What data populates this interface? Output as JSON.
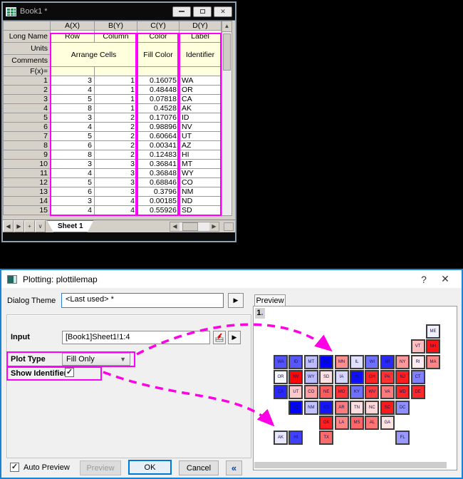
{
  "book_window": {
    "title": "Book1 *",
    "columns": [
      "A(X)",
      "B(Y)",
      "C(Y)",
      "D(Y)"
    ],
    "row_labels": {
      "long_name": "Long Name",
      "units": "Units",
      "comments": "Comments",
      "fx": "F(x)="
    },
    "long_name_values": [
      "Row",
      "Column",
      "Color",
      "Label"
    ],
    "span_labels": {
      "ab": "Arrange Cells",
      "c": "Fill Color",
      "d": "Identifier"
    },
    "data": [
      [
        3,
        1,
        "0.16075",
        "WA"
      ],
      [
        4,
        1,
        "0.48448",
        "OR"
      ],
      [
        5,
        1,
        "0.07818",
        "CA"
      ],
      [
        8,
        1,
        "0.4528",
        "AK"
      ],
      [
        3,
        2,
        "0.17076",
        "ID"
      ],
      [
        4,
        2,
        "0.98896",
        "NV"
      ],
      [
        5,
        2,
        "0.60664",
        "UT"
      ],
      [
        6,
        2,
        "0.00341",
        "AZ"
      ],
      [
        8,
        2,
        "0.12483",
        "HI"
      ],
      [
        3,
        3,
        "0.36841",
        "MT"
      ],
      [
        4,
        3,
        "0.36848",
        "WY"
      ],
      [
        5,
        3,
        "0.68846",
        "CO"
      ],
      [
        6,
        3,
        "0.3796",
        "NM"
      ],
      [
        3,
        4,
        "0.00185",
        "ND"
      ],
      [
        4,
        4,
        "0.55926",
        "SD"
      ]
    ],
    "sheet_tab": "Sheet 1"
  },
  "dialog": {
    "title": "Plotting: plottilemap",
    "help_label": "?",
    "close_label": "✕",
    "dialog_theme": {
      "label": "Dialog Theme",
      "value": "<Last used> *"
    },
    "input": {
      "label": "Input",
      "value": "[Book1]Sheet1!1:4"
    },
    "plot_type": {
      "label": "Plot Type",
      "value": "Fill Only"
    },
    "show_identifier": {
      "label": "Show Identifier",
      "checked": "✓"
    },
    "auto_preview": {
      "label": "Auto Preview",
      "checked": "✓"
    },
    "buttons": {
      "preview": "Preview",
      "ok": "OK",
      "cancel": "Cancel",
      "collapse": "«"
    },
    "preview_tab": "Preview",
    "layer_badge": "1",
    "highlight_color": "#FF00FF"
  },
  "tile_map": {
    "tiles": [
      {
        "id": "ME",
        "r": 1,
        "c": 11,
        "color": "#F0F0FF"
      },
      {
        "id": "VT",
        "r": 2,
        "c": 10,
        "color": "#FFBDBD"
      },
      {
        "id": "NH",
        "r": 2,
        "c": 11,
        "color": "#FF1414"
      },
      {
        "id": "WA",
        "r": 3,
        "c": 1,
        "color": "#5252FF"
      },
      {
        "id": "ID",
        "r": 3,
        "c": 2,
        "color": "#5757FF"
      },
      {
        "id": "MT",
        "r": 3,
        "c": 3,
        "color": "#BCBCFF"
      },
      {
        "id": "ND",
        "r": 3,
        "c": 4,
        "color": "#0101FF"
      },
      {
        "id": "MN",
        "r": 3,
        "c": 5,
        "color": "#FF8F8F"
      },
      {
        "id": "IL",
        "r": 3,
        "c": 6,
        "color": "#E0E0FF"
      },
      {
        "id": "WI",
        "r": 3,
        "c": 7,
        "color": "#7070FF"
      },
      {
        "id": "MI",
        "r": 3,
        "c": 8,
        "color": "#2929FF"
      },
      {
        "id": "NY",
        "r": 3,
        "c": 9,
        "color": "#FF9999"
      },
      {
        "id": "RI",
        "r": 3,
        "c": 10,
        "color": "#FFEBEB"
      },
      {
        "id": "MA",
        "r": 3,
        "c": 11,
        "color": "#FF8585"
      },
      {
        "id": "OR",
        "r": 4,
        "c": 1,
        "color": "#F7F7FF"
      },
      {
        "id": "NV",
        "r": 4,
        "c": 2,
        "color": "#FF0606"
      },
      {
        "id": "WY",
        "r": 4,
        "c": 3,
        "color": "#BCBCFF"
      },
      {
        "id": "SD",
        "r": 4,
        "c": 4,
        "color": "#FFE1E1"
      },
      {
        "id": "IA",
        "r": 4,
        "c": 5,
        "color": "#D6D6FF"
      },
      {
        "id": "IN",
        "r": 4,
        "c": 6,
        "color": "#0F0FFF"
      },
      {
        "id": "OH",
        "r": 4,
        "c": 7,
        "color": "#FF2424"
      },
      {
        "id": "PA",
        "r": 4,
        "c": 8,
        "color": "#FF3333"
      },
      {
        "id": "NJ",
        "r": 4,
        "c": 9,
        "color": "#FF1F1F"
      },
      {
        "id": "CT",
        "r": 4,
        "c": 10,
        "color": "#8080FF"
      },
      {
        "id": "CA",
        "r": 5,
        "c": 1,
        "color": "#2828FF"
      },
      {
        "id": "UT",
        "r": 5,
        "c": 2,
        "color": "#FFC9C9"
      },
      {
        "id": "CO",
        "r": 5,
        "c": 3,
        "color": "#FF9F9F"
      },
      {
        "id": "NE",
        "r": 5,
        "c": 4,
        "color": "#FF5C5C"
      },
      {
        "id": "MO",
        "r": 5,
        "c": 5,
        "color": "#FF3333"
      },
      {
        "id": "KY",
        "r": 5,
        "c": 6,
        "color": "#7070FF"
      },
      {
        "id": "WV",
        "r": 5,
        "c": 7,
        "color": "#FF3D3D"
      },
      {
        "id": "VA",
        "r": 5,
        "c": 8,
        "color": "#FF7A7A"
      },
      {
        "id": "MD",
        "r": 5,
        "c": 9,
        "color": "#FF2424"
      },
      {
        "id": "DE",
        "r": 5,
        "c": 10,
        "color": "#FF2929"
      },
      {
        "id": "AZ",
        "r": 6,
        "c": 2,
        "color": "#0202FF"
      },
      {
        "id": "NM",
        "r": 6,
        "c": 3,
        "color": "#C2C2FF"
      },
      {
        "id": "KS",
        "r": 6,
        "c": 4,
        "color": "#1414FF"
      },
      {
        "id": "AR",
        "r": 6,
        "c": 5,
        "color": "#FF7A7A"
      },
      {
        "id": "TN",
        "r": 6,
        "c": 6,
        "color": "#FFDEDE"
      },
      {
        "id": "NC",
        "r": 6,
        "c": 7,
        "color": "#FFD6D6"
      },
      {
        "id": "SC",
        "r": 6,
        "c": 8,
        "color": "#FF1A1A"
      },
      {
        "id": "DC",
        "r": 6,
        "c": 9,
        "color": "#8F8FFF"
      },
      {
        "id": "OK",
        "r": 7,
        "c": 4,
        "color": "#FF1F1F"
      },
      {
        "id": "LA",
        "r": 7,
        "c": 5,
        "color": "#FF8585"
      },
      {
        "id": "MS",
        "r": 7,
        "c": 6,
        "color": "#FF6666"
      },
      {
        "id": "AL",
        "r": 7,
        "c": 7,
        "color": "#FF7575"
      },
      {
        "id": "GA",
        "r": 7,
        "c": 8,
        "color": "#FFE3E3"
      },
      {
        "id": "AK",
        "r": 8,
        "c": 1,
        "color": "#E7E7FF"
      },
      {
        "id": "HI",
        "r": 8,
        "c": 2,
        "color": "#4040FF"
      },
      {
        "id": "TX",
        "r": 8,
        "c": 4,
        "color": "#FF6B6B"
      },
      {
        "id": "FL",
        "r": 8,
        "c": 9,
        "color": "#9999FF"
      }
    ]
  }
}
